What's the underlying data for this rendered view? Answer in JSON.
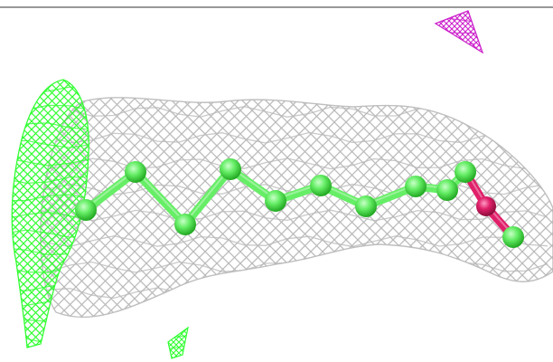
{
  "scene": {
    "background": "#ffffff",
    "top_rule_color": "#333333",
    "density_map_color": "#b8b8b8",
    "difference_map_positive_color": "#33ff33",
    "difference_map_negative_color": "#cc22cc",
    "carbon_atom_color": "#66ee66",
    "oxygen_atom_color": "#e0206a",
    "model_style": "ball-and-stick",
    "model_atoms": [
      "C",
      "C",
      "C",
      "C",
      "C",
      "C",
      "C",
      "C",
      "C",
      "C",
      "O",
      "C"
    ]
  }
}
